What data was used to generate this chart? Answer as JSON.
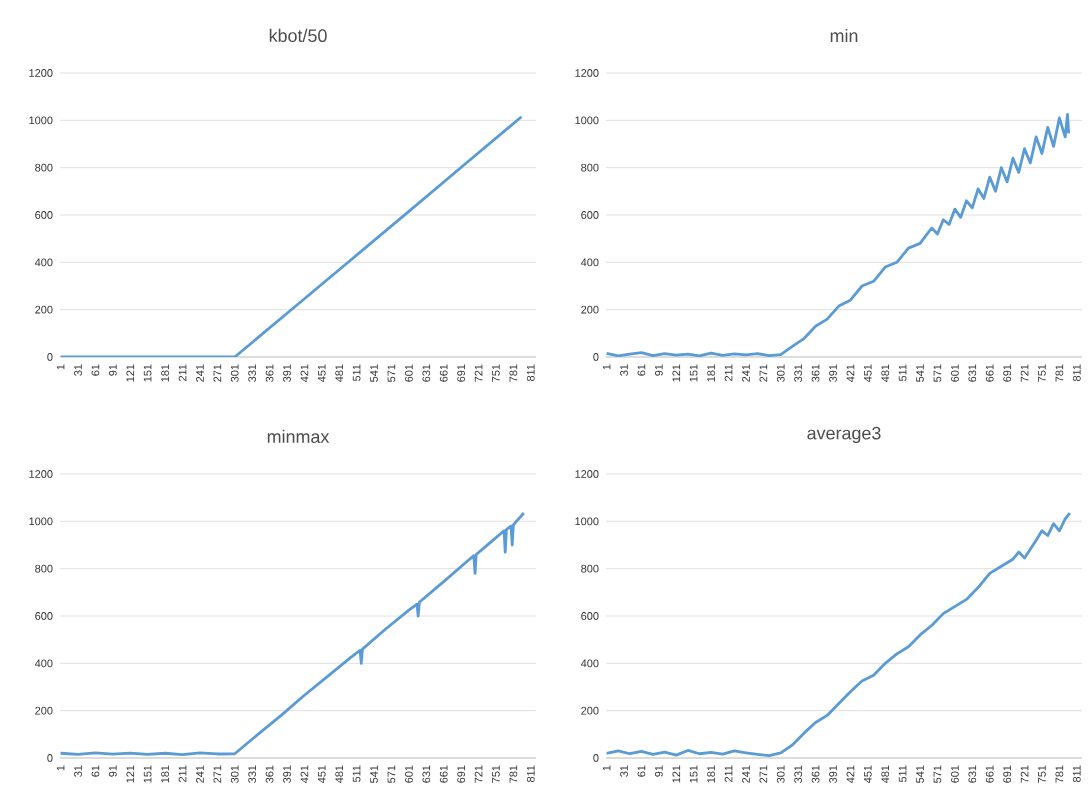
{
  "chart_data": [
    {
      "type": "line",
      "title": "kbot/50",
      "color": "#5b9bd5",
      "grid": "y",
      "xlim": [
        0,
        820
      ],
      "ylim": [
        0,
        1200
      ],
      "xticks": [
        1,
        31,
        61,
        91,
        121,
        151,
        181,
        211,
        241,
        271,
        301,
        331,
        361,
        391,
        421,
        451,
        481,
        511,
        541,
        571,
        601,
        631,
        661,
        691,
        721,
        751,
        781,
        811
      ],
      "yticks": [
        0,
        200,
        400,
        600,
        800,
        1000,
        1200
      ],
      "x": [
        1,
        151,
        301,
        401,
        501,
        601,
        701,
        795
      ],
      "values": [
        0,
        0,
        0,
        205,
        410,
        615,
        822,
        1015
      ]
    },
    {
      "type": "line",
      "title": "min",
      "color": "#5b9bd5",
      "grid": "y",
      "xlim": [
        0,
        820
      ],
      "ylim": [
        0,
        1200
      ],
      "xticks": [
        1,
        31,
        61,
        91,
        121,
        151,
        181,
        211,
        241,
        271,
        301,
        331,
        361,
        391,
        421,
        451,
        481,
        511,
        541,
        571,
        601,
        631,
        661,
        691,
        721,
        751,
        781,
        811
      ],
      "yticks": [
        0,
        200,
        400,
        600,
        800,
        1000,
        1200
      ],
      "x": [
        1,
        21,
        41,
        61,
        81,
        101,
        121,
        141,
        161,
        181,
        201,
        221,
        241,
        261,
        281,
        301,
        321,
        341,
        361,
        381,
        401,
        421,
        441,
        461,
        481,
        501,
        521,
        541,
        561,
        571,
        581,
        591,
        601,
        611,
        621,
        631,
        641,
        651,
        661,
        671,
        681,
        691,
        701,
        711,
        721,
        731,
        741,
        751,
        761,
        771,
        781,
        791,
        795,
        797
      ],
      "values": [
        15,
        5,
        12,
        18,
        6,
        14,
        8,
        12,
        5,
        16,
        7,
        13,
        9,
        14,
        6,
        10,
        45,
        78,
        130,
        160,
        215,
        240,
        300,
        320,
        380,
        400,
        460,
        480,
        545,
        520,
        580,
        560,
        625,
        590,
        660,
        630,
        710,
        670,
        760,
        700,
        800,
        740,
        840,
        780,
        880,
        820,
        930,
        860,
        970,
        890,
        1010,
        930,
        1025,
        945
      ]
    },
    {
      "type": "line",
      "title": "minmax",
      "color": "#5b9bd5",
      "grid": "y",
      "xlim": [
        0,
        820
      ],
      "ylim": [
        0,
        1200
      ],
      "xticks": [
        1,
        31,
        61,
        91,
        121,
        151,
        181,
        211,
        241,
        271,
        301,
        331,
        361,
        391,
        421,
        451,
        481,
        511,
        541,
        571,
        601,
        631,
        661,
        691,
        721,
        751,
        781,
        811
      ],
      "yticks": [
        0,
        200,
        400,
        600,
        800,
        1000,
        1200
      ],
      "x": [
        1,
        31,
        61,
        91,
        121,
        151,
        181,
        211,
        241,
        271,
        301,
        341,
        381,
        421,
        461,
        501,
        517,
        519,
        521,
        561,
        601,
        615,
        617,
        619,
        661,
        701,
        713,
        715,
        717,
        741,
        765,
        767,
        769,
        777,
        779,
        781,
        799
      ],
      "values": [
        20,
        15,
        22,
        16,
        21,
        15,
        20,
        14,
        22,
        17,
        18,
        100,
        180,
        265,
        345,
        425,
        455,
        400,
        460,
        545,
        625,
        650,
        600,
        658,
        745,
        830,
        855,
        780,
        860,
        910,
        960,
        870,
        965,
        980,
        900,
        985,
        1035
      ]
    },
    {
      "type": "line",
      "title": "average3",
      "color": "#5b9bd5",
      "grid": "y",
      "xlim": [
        0,
        820
      ],
      "ylim": [
        0,
        1200
      ],
      "xticks": [
        1,
        31,
        61,
        91,
        121,
        151,
        181,
        211,
        241,
        271,
        301,
        331,
        361,
        391,
        421,
        451,
        481,
        511,
        541,
        571,
        601,
        631,
        661,
        691,
        721,
        751,
        781,
        811
      ],
      "yticks": [
        0,
        200,
        400,
        600,
        800,
        1000,
        1200
      ],
      "x": [
        1,
        21,
        41,
        61,
        81,
        101,
        121,
        141,
        161,
        181,
        201,
        221,
        241,
        261,
        281,
        301,
        321,
        341,
        361,
        381,
        401,
        421,
        441,
        461,
        481,
        501,
        521,
        541,
        561,
        581,
        601,
        621,
        641,
        661,
        681,
        701,
        711,
        721,
        741,
        751,
        761,
        771,
        781,
        791,
        799
      ],
      "values": [
        20,
        30,
        18,
        28,
        15,
        25,
        12,
        32,
        18,
        24,
        16,
        30,
        22,
        15,
        10,
        22,
        55,
        105,
        150,
        180,
        230,
        280,
        325,
        350,
        400,
        440,
        470,
        520,
        560,
        610,
        640,
        670,
        720,
        780,
        810,
        840,
        870,
        845,
        920,
        960,
        940,
        990,
        960,
        1010,
        1035
      ]
    }
  ]
}
